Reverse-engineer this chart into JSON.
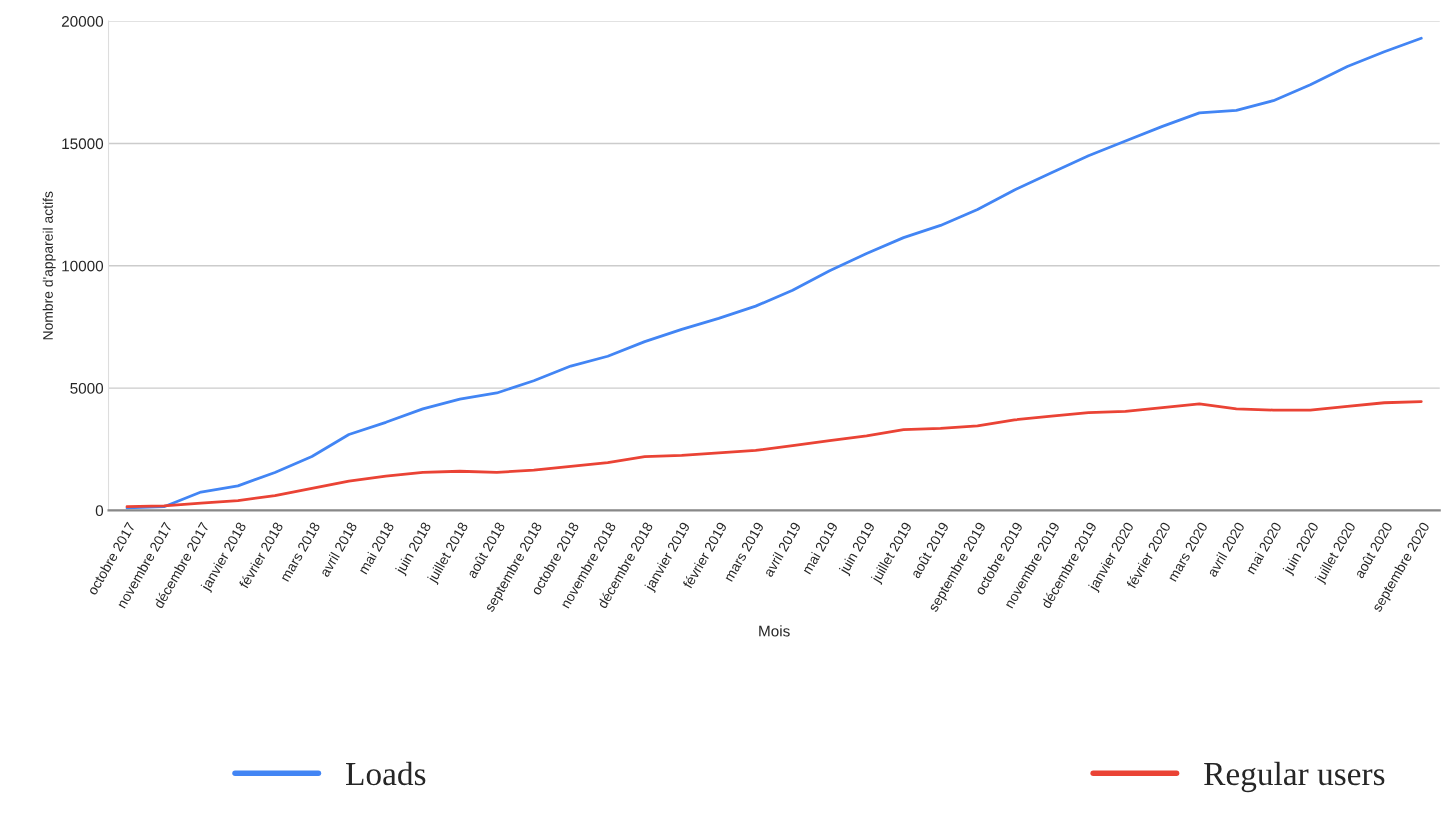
{
  "chart_data": {
    "type": "line",
    "xlabel": "Mois",
    "ylabel": "Nombre d'appareil actifs",
    "categories": [
      "octobre 2017",
      "novembre 2017",
      "décembre 2017",
      "janvier 2018",
      "février 2018",
      "mars 2018",
      "avril 2018",
      "mai 2018",
      "juin 2018",
      "juillet 2018",
      "août 2018",
      "septembre 2018",
      "octobre 2018",
      "novembre 2018",
      "décembre 2018",
      "janvier 2019",
      "février 2019",
      "mars 2019",
      "avril 2019",
      "mai 2019",
      "juin 2019",
      "juillet 2019",
      "août 2019",
      "septembre 2019",
      "octobre 2019",
      "novembre 2019",
      "décembre 2019",
      "janvier 2020",
      "février 2020",
      "mars 2020",
      "avril 2020",
      "mai 2020",
      "juin 2020",
      "juillet 2020",
      "août 2020",
      "septembre 2020"
    ],
    "series": [
      {
        "name": "Loads",
        "color": "#4285f4",
        "values": [
          100,
          150,
          750,
          1000,
          1550,
          2200,
          3100,
          3600,
          4150,
          4550,
          4800,
          5300,
          5900,
          6300,
          6900,
          7400,
          7850,
          8350,
          9000,
          9800,
          10500,
          11150,
          11650,
          12300,
          13100,
          13800,
          14500,
          15100,
          15700,
          16250,
          16350,
          16750,
          17400,
          18150,
          18750,
          19300
        ]
      },
      {
        "name": "Regular users",
        "color": "#ea4335",
        "values": [
          150,
          180,
          300,
          400,
          600,
          900,
          1200,
          1400,
          1550,
          1600,
          1550,
          1650,
          1800,
          1950,
          2200,
          2250,
          2350,
          2450,
          2650,
          2850,
          3050,
          3300,
          3350,
          3450,
          3700,
          3850,
          4000,
          4050,
          4200,
          4350,
          4150,
          4100,
          4100,
          4250,
          4400,
          4450
        ]
      }
    ],
    "ylim": [
      0,
      20000
    ],
    "yticks": [
      0,
      5000,
      10000,
      15000,
      20000
    ],
    "grid": "y",
    "legend": "bottom",
    "marker": "none",
    "line_style": "solid"
  }
}
